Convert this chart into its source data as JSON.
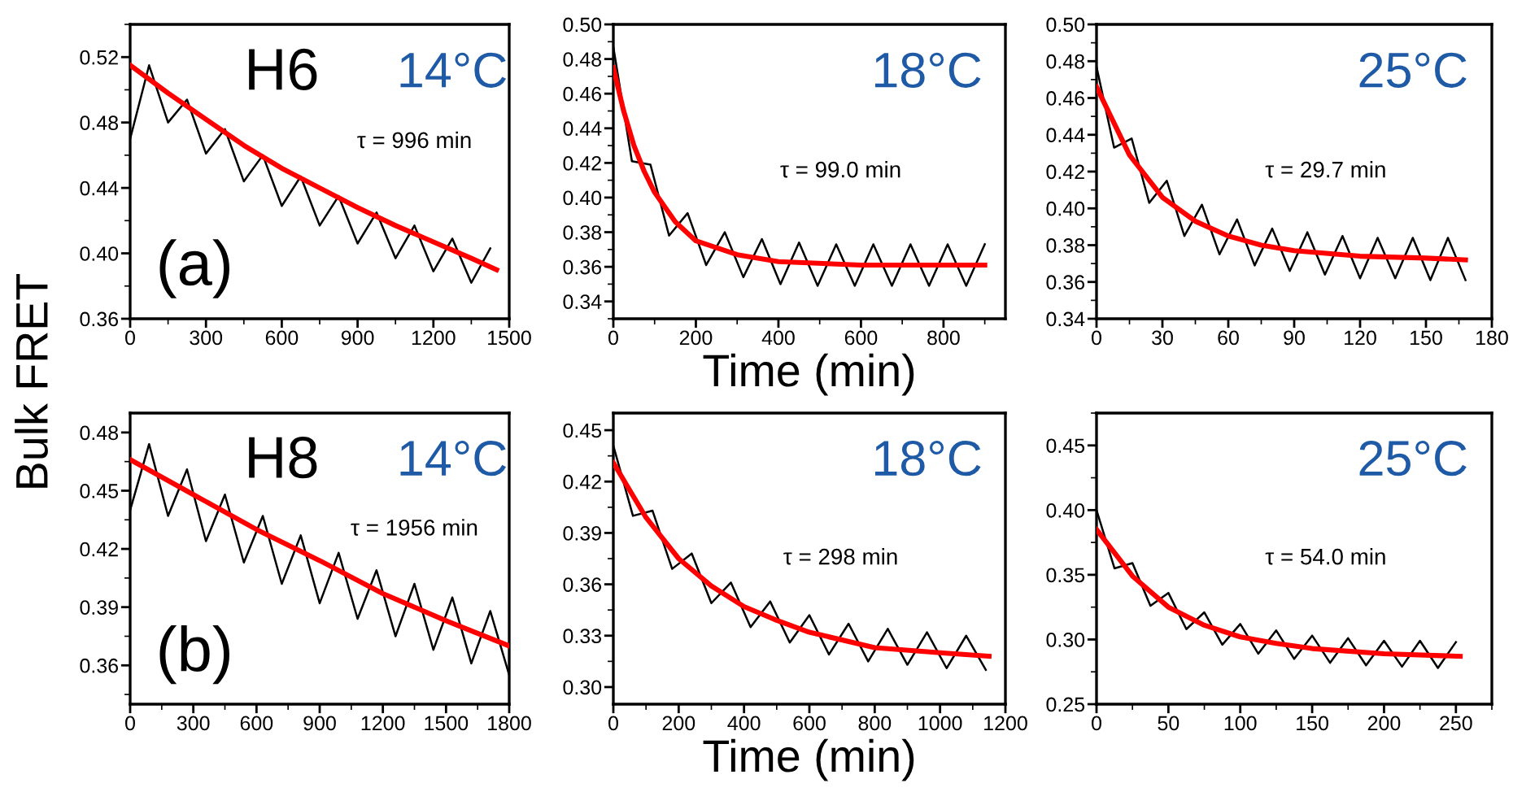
{
  "chart_data": [
    {
      "type": "line",
      "ylabel": "Bulk FRET",
      "annotations": [
        "H6",
        "14°C",
        "(a)",
        "τ = 996 min"
      ],
      "x": [
        0,
        150,
        300,
        450,
        600,
        750,
        900,
        1050,
        1200,
        1350,
        1450
      ],
      "xlim": [
        0,
        1500
      ],
      "xticks": [
        0,
        300,
        600,
        900,
        1200,
        1500
      ],
      "ylim": [
        0.36,
        0.54
      ],
      "yticks": [
        0.36,
        {
          "value": 0.4,
          "label": "0.40"
        },
        0.44,
        0.48,
        0.52
      ],
      "series": [
        {
          "color": "#000000",
          "x": [
            0,
            75,
            150,
            225,
            300,
            375,
            450,
            525,
            600,
            675,
            750,
            825,
            900,
            975,
            1050,
            1125,
            1200,
            1275,
            1350,
            1425
          ],
          "values": [
            0.47,
            0.515,
            0.48,
            0.494,
            0.461,
            0.476,
            0.444,
            0.46,
            0.429,
            0.447,
            0.417,
            0.435,
            0.406,
            0.425,
            0.397,
            0.417,
            0.389,
            0.409,
            0.382,
            0.403
          ]
        },
        {
          "color": "#ff0000",
          "values": [
            0.515,
            0.498,
            0.482,
            0.466,
            0.452,
            0.44,
            0.428,
            0.417,
            0.407,
            0.397,
            0.39
          ]
        }
      ]
    },
    {
      "type": "line",
      "xlabel": "Time (min)",
      "annotations": [
        "18°C",
        "τ = 99.0 min"
      ],
      "x": [
        0,
        25,
        50,
        75,
        100,
        150,
        200,
        300,
        400,
        600,
        900
      ],
      "xlim": [
        0,
        950
      ],
      "xticks": [
        0,
        200,
        400,
        600,
        800
      ],
      "ylim": [
        0.33,
        0.5
      ],
      "yticks": [
        0.34,
        0.36,
        0.38,
        {
          "value": 0.4,
          "label": "0.40"
        },
        0.42,
        0.44,
        0.46,
        0.48,
        {
          "value": 0.5,
          "label": "0.50"
        }
      ],
      "series": [
        {
          "color": "#000000",
          "x": [
            0,
            45,
            90,
            135,
            180,
            225,
            270,
            315,
            360,
            405,
            450,
            495,
            540,
            585,
            630,
            675,
            720,
            765,
            810,
            855,
            900
          ],
          "values": [
            0.487,
            0.421,
            0.419,
            0.378,
            0.391,
            0.361,
            0.38,
            0.354,
            0.376,
            0.35,
            0.374,
            0.349,
            0.373,
            0.349,
            0.373,
            0.349,
            0.373,
            0.349,
            0.373,
            0.349,
            0.373
          ]
        },
        {
          "color": "#ff0000",
          "values": [
            0.475,
            0.45,
            0.43,
            0.415,
            0.403,
            0.386,
            0.375,
            0.367,
            0.363,
            0.361,
            0.361
          ]
        }
      ]
    },
    {
      "type": "line",
      "annotations": [
        "25°C",
        "τ = 29.7 min"
      ],
      "x": [
        0,
        15,
        30,
        45,
        60,
        75,
        90,
        120,
        150,
        168
      ],
      "xlim": [
        0,
        180
      ],
      "xticks": [
        0,
        30,
        60,
        90,
        120,
        150,
        180
      ],
      "ylim": [
        0.34,
        0.5
      ],
      "yticks": [
        0.34,
        0.36,
        0.38,
        {
          "value": 0.4,
          "label": "0.40"
        },
        0.42,
        0.44,
        0.46,
        0.48,
        {
          "value": 0.5,
          "label": "0.50"
        }
      ],
      "series": [
        {
          "color": "#000000",
          "x": [
            0,
            8,
            16,
            24,
            32,
            40,
            48,
            56,
            64,
            72,
            80,
            88,
            96,
            104,
            112,
            120,
            128,
            136,
            144,
            152,
            160,
            168
          ],
          "values": [
            0.477,
            0.433,
            0.438,
            0.403,
            0.415,
            0.385,
            0.402,
            0.375,
            0.394,
            0.369,
            0.389,
            0.366,
            0.387,
            0.364,
            0.385,
            0.362,
            0.384,
            0.362,
            0.384,
            0.361,
            0.384,
            0.361
          ]
        },
        {
          "color": "#ff0000",
          "values": [
            0.466,
            0.429,
            0.406,
            0.393,
            0.385,
            0.38,
            0.377,
            0.374,
            0.373,
            0.372
          ]
        }
      ]
    },
    {
      "type": "line",
      "annotations": [
        "H8",
        "14°C",
        "(b)",
        "τ = 1956 min"
      ],
      "x": [
        0,
        300,
        600,
        900,
        1200,
        1500,
        1800
      ],
      "xlim": [
        0,
        1800
      ],
      "xticks": [
        0,
        300,
        600,
        900,
        1200,
        1500,
        1800
      ],
      "ylim": [
        0.34,
        0.49
      ],
      "yticks": [
        0.36,
        0.39,
        0.42,
        0.45,
        0.48
      ],
      "series": [
        {
          "color": "#000000",
          "x": [
            0,
            90,
            180,
            270,
            360,
            450,
            540,
            630,
            720,
            810,
            900,
            990,
            1080,
            1170,
            1260,
            1350,
            1440,
            1530,
            1620,
            1710,
            1800
          ],
          "values": [
            0.44,
            0.474,
            0.437,
            0.461,
            0.424,
            0.448,
            0.413,
            0.437,
            0.402,
            0.427,
            0.392,
            0.418,
            0.384,
            0.409,
            0.375,
            0.402,
            0.368,
            0.395,
            0.361,
            0.388,
            0.355
          ]
        },
        {
          "color": "#ff0000",
          "values": [
            0.466,
            0.448,
            0.43,
            0.414,
            0.397,
            0.383,
            0.37
          ]
        }
      ]
    },
    {
      "type": "line",
      "xlabel": "Time (min)",
      "annotations": [
        "18°C",
        "τ = 298 min"
      ],
      "x": [
        0,
        100,
        200,
        300,
        400,
        500,
        600,
        800,
        1000,
        1150
      ],
      "xlim": [
        0,
        1200
      ],
      "xticks": [
        0,
        200,
        400,
        600,
        800,
        1000,
        1200
      ],
      "ylim": [
        0.29,
        0.46
      ],
      "yticks": [
        {
          "value": 0.3,
          "label": "0.30"
        },
        0.33,
        0.36,
        0.39,
        0.42,
        0.45
      ],
      "series": [
        {
          "color": "#000000",
          "x": [
            0,
            60,
            120,
            180,
            240,
            300,
            360,
            420,
            480,
            540,
            600,
            660,
            720,
            780,
            840,
            900,
            960,
            1020,
            1080,
            1140
          ],
          "values": [
            0.441,
            0.4,
            0.403,
            0.369,
            0.378,
            0.349,
            0.361,
            0.335,
            0.35,
            0.326,
            0.342,
            0.319,
            0.337,
            0.315,
            0.334,
            0.313,
            0.332,
            0.311,
            0.33,
            0.31
          ]
        },
        {
          "color": "#ff0000",
          "values": [
            0.431,
            0.399,
            0.375,
            0.359,
            0.347,
            0.339,
            0.332,
            0.323,
            0.32,
            0.318
          ]
        }
      ]
    },
    {
      "type": "line",
      "annotations": [
        "25°C",
        "τ = 54.0 min"
      ],
      "x": [
        0,
        25,
        50,
        75,
        100,
        125,
        150,
        200,
        253
      ],
      "xlim": [
        0,
        275
      ],
      "xticks": [
        0,
        50,
        100,
        150,
        200,
        250
      ],
      "ylim": [
        0.25,
        0.475
      ],
      "yticks": [
        0.25,
        {
          "value": 0.3,
          "label": "0.30"
        },
        0.35,
        {
          "value": 0.4,
          "label": "0.40"
        },
        0.45
      ],
      "series": [
        {
          "color": "#000000",
          "x": [
            0,
            12.5,
            25,
            37.5,
            50,
            62.5,
            75,
            87.5,
            100,
            112.5,
            125,
            137.5,
            150,
            162.5,
            175,
            187.5,
            200,
            212.5,
            225,
            237.5,
            250
          ],
          "values": [
            0.4,
            0.355,
            0.359,
            0.326,
            0.336,
            0.308,
            0.321,
            0.296,
            0.312,
            0.289,
            0.307,
            0.285,
            0.303,
            0.282,
            0.301,
            0.28,
            0.299,
            0.279,
            0.299,
            0.278,
            0.298
          ]
        },
        {
          "color": "#ff0000",
          "values": [
            0.385,
            0.349,
            0.325,
            0.311,
            0.302,
            0.297,
            0.293,
            0.289,
            0.287
          ]
        }
      ]
    }
  ]
}
